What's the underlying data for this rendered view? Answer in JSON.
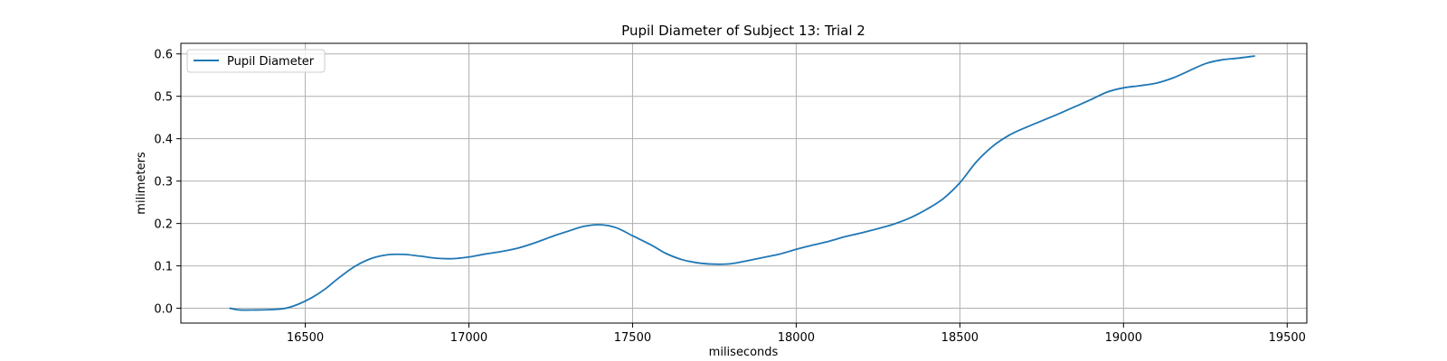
{
  "chart_data": {
    "type": "line",
    "title": "Pupil Diameter of Subject 13: Trial 2",
    "xlabel": "miliseconds",
    "ylabel": "milimeters",
    "xlim": [
      16120,
      19560
    ],
    "ylim": [
      -0.035,
      0.625
    ],
    "xticks": [
      16500,
      17000,
      17500,
      18000,
      18500,
      19000,
      19500
    ],
    "yticks": [
      0.0,
      0.1,
      0.2,
      0.3,
      0.4,
      0.5,
      0.6
    ],
    "ytick_labels": [
      "0.0",
      "0.1",
      "0.2",
      "0.3",
      "0.4",
      "0.5",
      "0.6"
    ],
    "grid": true,
    "legend_position": "upper-left",
    "colors": {
      "line": "#1f77b4",
      "grid": "#b0b0b0",
      "axes": "#000000",
      "legend_border": "#cccccc"
    },
    "series": [
      {
        "name": "Pupil Diameter",
        "x": [
          16270,
          16300,
          16350,
          16400,
          16440,
          16480,
          16520,
          16560,
          16600,
          16650,
          16700,
          16750,
          16800,
          16850,
          16900,
          16950,
          17000,
          17050,
          17100,
          17150,
          17200,
          17260,
          17300,
          17350,
          17400,
          17450,
          17500,
          17560,
          17600,
          17650,
          17700,
          17750,
          17800,
          17850,
          17900,
          17950,
          18000,
          18050,
          18100,
          18150,
          18200,
          18260,
          18300,
          18350,
          18400,
          18450,
          18500,
          18550,
          18600,
          18650,
          18700,
          18750,
          18800,
          18850,
          18900,
          18950,
          19000,
          19050,
          19100,
          19150,
          19200,
          19250,
          19300,
          19350,
          19400
        ],
        "y": [
          0.0,
          -0.004,
          -0.004,
          -0.003,
          0.0,
          0.01,
          0.025,
          0.045,
          0.07,
          0.098,
          0.117,
          0.126,
          0.127,
          0.123,
          0.118,
          0.117,
          0.121,
          0.128,
          0.134,
          0.142,
          0.154,
          0.171,
          0.181,
          0.193,
          0.197,
          0.19,
          0.171,
          0.148,
          0.13,
          0.115,
          0.107,
          0.104,
          0.105,
          0.112,
          0.12,
          0.128,
          0.139,
          0.149,
          0.158,
          0.169,
          0.178,
          0.19,
          0.199,
          0.214,
          0.234,
          0.259,
          0.296,
          0.345,
          0.382,
          0.408,
          0.426,
          0.442,
          0.458,
          0.475,
          0.492,
          0.51,
          0.52,
          0.525,
          0.531,
          0.543,
          0.56,
          0.577,
          0.586,
          0.59,
          0.595
        ]
      }
    ]
  }
}
